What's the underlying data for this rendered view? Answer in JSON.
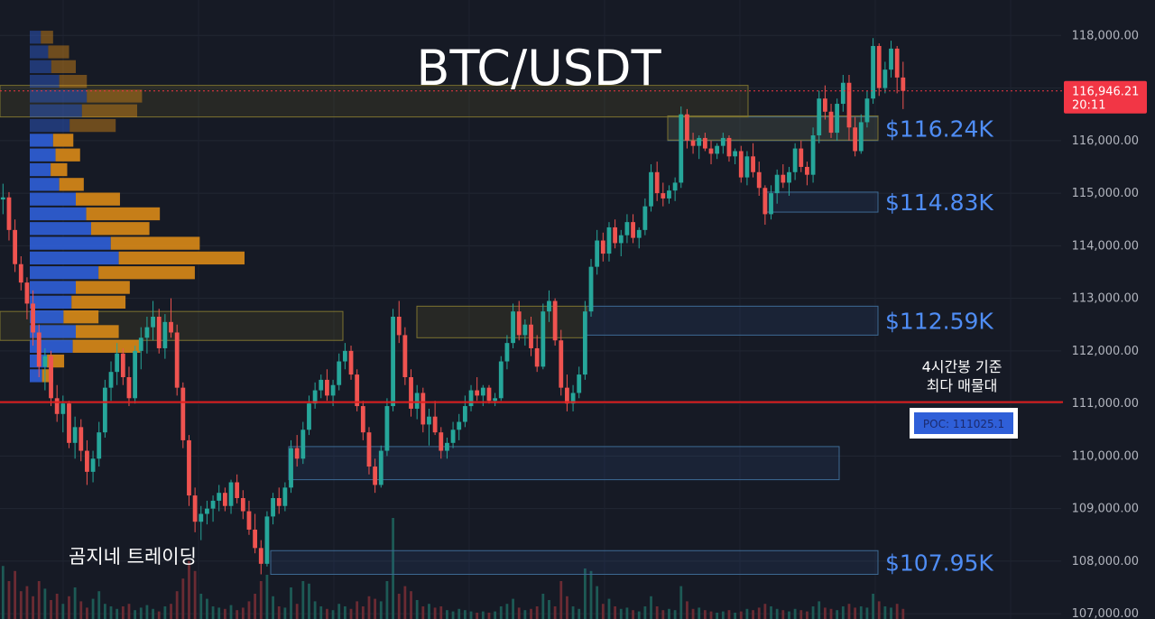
{
  "chart_data": {
    "type": "candlestick",
    "title": "BTC/USDT",
    "brand": "곰지네 트레이딩",
    "colors": {
      "background": "#161a25",
      "up": "#26a69a",
      "down": "#ef5350",
      "volume_buy": "#2f5fd8",
      "volume_sell": "#d98a17",
      "zone_label": "#4f8df5",
      "poc_line": "#e01e1e",
      "price_tag": "#f23645"
    },
    "y_axis": {
      "ylim": [
        106900,
        118400
      ],
      "tick_values": [
        107000,
        108000,
        109000,
        110000,
        111000,
        112000,
        113000,
        114000,
        115000,
        116000,
        117000,
        118000
      ],
      "tick_labels": [
        "107,000.00",
        "108,000.00",
        "109,000.00",
        "110,000.00",
        "111,000.00",
        "112,000.00",
        "113,000.00",
        "114,000.00",
        "115,000.00",
        "116,000.00",
        "117,000.00",
        "118,000.00"
      ]
    },
    "current_price": {
      "value": 116946.21,
      "label": "116,946.21",
      "countdown": "20:11"
    },
    "poc": {
      "value": 111025.1,
      "label": "POC: 111025.1",
      "note_line1": "4시간봉 기준",
      "note_line2": "최다 매물대"
    },
    "zones": [
      {
        "label": "$116.24K",
        "low": 116000,
        "high": 116450
      },
      {
        "label": "$114.83K",
        "low": 114640,
        "high": 115020
      },
      {
        "label": "$112.59K",
        "low": 112300,
        "high": 112850
      },
      {
        "label": "",
        "low": 109550,
        "high": 110180
      },
      {
        "label": "$107.95K",
        "low": 107750,
        "high": 108200
      }
    ],
    "supply_boxes": [
      {
        "low": 116450,
        "high": 117050
      },
      {
        "low": 112200,
        "high": 112750
      },
      {
        "low": 112250,
        "high": 112850
      },
      {
        "low": 116010,
        "high": 116470
      }
    ],
    "volume_profile": {
      "bucket_size": 280,
      "start_price": 117950,
      "buckets": [
        {
          "buy": 18,
          "sell": 20
        },
        {
          "buy": 30,
          "sell": 34
        },
        {
          "buy": 35,
          "sell": 40
        },
        {
          "buy": 48,
          "sell": 45
        },
        {
          "buy": 93,
          "sell": 90
        },
        {
          "buy": 85,
          "sell": 90
        },
        {
          "buy": 65,
          "sell": 75
        },
        {
          "buy": 38,
          "sell": 33
        },
        {
          "buy": 42,
          "sell": 40
        },
        {
          "buy": 34,
          "sell": 27
        },
        {
          "buy": 48,
          "sell": 40
        },
        {
          "buy": 75,
          "sell": 72
        },
        {
          "buy": 92,
          "sell": 120
        },
        {
          "buy": 100,
          "sell": 95
        },
        {
          "buy": 132,
          "sell": 145
        },
        {
          "buy": 145,
          "sell": 205
        },
        {
          "buy": 112,
          "sell": 157
        },
        {
          "buy": 75,
          "sell": 88
        },
        {
          "buy": 68,
          "sell": 88
        },
        {
          "buy": 55,
          "sell": 57
        },
        {
          "buy": 75,
          "sell": 70
        },
        {
          "buy": 70,
          "sell": 110
        },
        {
          "buy": 28,
          "sell": 28
        },
        {
          "buy": 20,
          "sell": 18
        }
      ]
    },
    "candles": [
      [
        114880,
        115180,
        114600,
        114920
      ],
      [
        114920,
        115020,
        114100,
        114300
      ],
      [
        114300,
        114500,
        113500,
        113650
      ],
      [
        113650,
        113800,
        113150,
        113300
      ],
      [
        113300,
        113400,
        112600,
        112900
      ],
      [
        112900,
        113150,
        112100,
        112350
      ],
      [
        112350,
        112500,
        111500,
        111700
      ],
      [
        111700,
        112050,
        111250,
        111900
      ],
      [
        111900,
        112000,
        110950,
        111100
      ],
      [
        111100,
        111350,
        110650,
        110800
      ],
      [
        110800,
        111150,
        110450,
        111000
      ],
      [
        111000,
        111050,
        110150,
        110250
      ],
      [
        110250,
        110750,
        109950,
        110550
      ],
      [
        110550,
        110700,
        109900,
        110100
      ],
      [
        110100,
        110300,
        109450,
        109700
      ],
      [
        109700,
        110100,
        109500,
        109950
      ],
      [
        109950,
        110650,
        109800,
        110450
      ],
      [
        110450,
        111450,
        110350,
        111300
      ],
      [
        111300,
        111800,
        111050,
        111600
      ],
      [
        111600,
        112150,
        111350,
        111950
      ],
      [
        111950,
        112050,
        111350,
        111500
      ],
      [
        111500,
        111700,
        110950,
        111100
      ],
      [
        111100,
        112100,
        111000,
        112000
      ],
      [
        112000,
        112450,
        111650,
        112250
      ],
      [
        112250,
        112650,
        111950,
        112450
      ],
      [
        112450,
        112950,
        112200,
        112650
      ],
      [
        112650,
        112800,
        111950,
        112050
      ],
      [
        112050,
        112700,
        111850,
        112550
      ],
      [
        112550,
        113000,
        112250,
        112350
      ],
      [
        112350,
        112500,
        111150,
        111300
      ],
      [
        111300,
        111400,
        110150,
        110300
      ],
      [
        110300,
        110400,
        109050,
        109250
      ],
      [
        109250,
        109400,
        108550,
        108750
      ],
      [
        108750,
        109050,
        108400,
        108900
      ],
      [
        108900,
        109150,
        108700,
        109000
      ],
      [
        109000,
        109250,
        108750,
        109150
      ],
      [
        109150,
        109450,
        108950,
        109300
      ],
      [
        109300,
        109400,
        108950,
        109050
      ],
      [
        109050,
        109550,
        108900,
        109500
      ],
      [
        109500,
        109650,
        109100,
        109200
      ],
      [
        109200,
        109350,
        108800,
        108950
      ],
      [
        108950,
        109150,
        108500,
        108600
      ],
      [
        108600,
        108900,
        108150,
        108250
      ],
      [
        108250,
        108400,
        107750,
        107950
      ],
      [
        107950,
        108950,
        107900,
        108850
      ],
      [
        108850,
        109300,
        108700,
        109200
      ],
      [
        109200,
        109400,
        108900,
        109050
      ],
      [
        109050,
        109500,
        108950,
        109400
      ],
      [
        109400,
        110300,
        109300,
        110150
      ],
      [
        110150,
        110400,
        109800,
        109950
      ],
      [
        109950,
        110650,
        109850,
        110500
      ],
      [
        110500,
        111150,
        110400,
        111000
      ],
      [
        111000,
        111400,
        110900,
        111250
      ],
      [
        111250,
        111550,
        111100,
        111450
      ],
      [
        111450,
        111650,
        111050,
        111150
      ],
      [
        111150,
        111450,
        110950,
        111350
      ],
      [
        111350,
        111950,
        111250,
        111800
      ],
      [
        111800,
        112150,
        111650,
        112000
      ],
      [
        112000,
        112100,
        111450,
        111550
      ],
      [
        111550,
        111650,
        110850,
        110950
      ],
      [
        110950,
        111050,
        110300,
        110450
      ],
      [
        110450,
        110550,
        109650,
        109800
      ],
      [
        109800,
        109950,
        109300,
        109450
      ],
      [
        109450,
        110200,
        109400,
        110100
      ],
      [
        110100,
        111100,
        110000,
        110950
      ],
      [
        110950,
        112800,
        110850,
        112650
      ],
      [
        112650,
        112950,
        112150,
        112300
      ],
      [
        112300,
        112450,
        111350,
        111500
      ],
      [
        111500,
        111650,
        110750,
        110900
      ],
      [
        110900,
        111350,
        110700,
        111200
      ],
      [
        111200,
        111300,
        110450,
        110600
      ],
      [
        110600,
        110900,
        110200,
        110750
      ],
      [
        110750,
        111050,
        110400,
        110450
      ],
      [
        110450,
        110550,
        109950,
        110100
      ],
      [
        110100,
        110350,
        109950,
        110250
      ],
      [
        110250,
        110650,
        110150,
        110500
      ],
      [
        110500,
        110800,
        110300,
        110650
      ],
      [
        110650,
        111150,
        110550,
        110950
      ],
      [
        110950,
        111350,
        110850,
        111250
      ],
      [
        111250,
        111500,
        111050,
        111150
      ],
      [
        111150,
        111350,
        110950,
        111300
      ],
      [
        111300,
        111350,
        111000,
        111050
      ],
      [
        111050,
        111200,
        110950,
        111100
      ],
      [
        111100,
        111900,
        111050,
        111800
      ],
      [
        111800,
        112300,
        111650,
        112150
      ],
      [
        112150,
        112900,
        112050,
        112750
      ],
      [
        112750,
        112950,
        112200,
        112300
      ],
      [
        112300,
        112600,
        112100,
        112500
      ],
      [
        112500,
        112650,
        111900,
        112050
      ],
      [
        112050,
        112300,
        111600,
        111700
      ],
      [
        111700,
        112900,
        111650,
        112750
      ],
      [
        112750,
        113150,
        112550,
        112950
      ],
      [
        112950,
        113000,
        112100,
        112200
      ],
      [
        112200,
        112400,
        111150,
        111300
      ],
      [
        111300,
        111550,
        110850,
        111000
      ],
      [
        111000,
        111350,
        110850,
        111200
      ],
      [
        111200,
        111700,
        111100,
        111550
      ],
      [
        111550,
        112950,
        111450,
        112750
      ],
      [
        112750,
        113750,
        112650,
        113600
      ],
      [
        113600,
        114300,
        113450,
        114100
      ],
      [
        114100,
        114250,
        113700,
        113850
      ],
      [
        113850,
        114450,
        113700,
        114350
      ],
      [
        114350,
        114500,
        113950,
        114050
      ],
      [
        114050,
        114300,
        113800,
        114200
      ],
      [
        114200,
        114600,
        114050,
        114450
      ],
      [
        114450,
        114600,
        114050,
        114150
      ],
      [
        114150,
        114350,
        113950,
        114300
      ],
      [
        114300,
        114900,
        114200,
        114750
      ],
      [
        114750,
        115550,
        114650,
        115400
      ],
      [
        115400,
        115600,
        114850,
        115000
      ],
      [
        115000,
        115200,
        114750,
        114900
      ],
      [
        114900,
        115150,
        114800,
        115050
      ],
      [
        115050,
        115300,
        114850,
        115200
      ],
      [
        115200,
        116650,
        115100,
        116500
      ],
      [
        116500,
        116600,
        115850,
        116000
      ],
      [
        116000,
        116150,
        115750,
        115900
      ],
      [
        115900,
        116100,
        115650,
        116050
      ],
      [
        116050,
        116150,
        115800,
        115850
      ],
      [
        115850,
        116000,
        115550,
        115750
      ],
      [
        115750,
        115950,
        115650,
        115900
      ],
      [
        115900,
        116150,
        115750,
        116050
      ],
      [
        116050,
        116100,
        115600,
        115700
      ],
      [
        115700,
        115850,
        115550,
        115800
      ],
      [
        115800,
        115900,
        115200,
        115300
      ],
      [
        115300,
        115800,
        115150,
        115700
      ],
      [
        115700,
        115950,
        115300,
        115400
      ],
      [
        115400,
        115600,
        114950,
        115100
      ],
      [
        115100,
        115150,
        114400,
        114600
      ],
      [
        114600,
        115150,
        114500,
        115000
      ],
      [
        115000,
        115450,
        114800,
        115350
      ],
      [
        115350,
        115550,
        115100,
        115200
      ],
      [
        115200,
        115500,
        114950,
        115400
      ],
      [
        115400,
        115950,
        115250,
        115850
      ],
      [
        115850,
        116000,
        115400,
        115500
      ],
      [
        115500,
        115600,
        115150,
        115350
      ],
      [
        115350,
        116250,
        115200,
        116100
      ],
      [
        116100,
        116950,
        115950,
        116800
      ],
      [
        116800,
        117050,
        116400,
        116550
      ],
      [
        116550,
        116700,
        116050,
        116150
      ],
      [
        116150,
        116800,
        116000,
        116700
      ],
      [
        116700,
        117250,
        116550,
        117100
      ],
      [
        117100,
        117250,
        116000,
        116250
      ],
      [
        116250,
        116450,
        115700,
        115800
      ],
      [
        115800,
        116500,
        115750,
        116350
      ],
      [
        116350,
        116950,
        116250,
        116800
      ],
      [
        116800,
        117950,
        116700,
        117800
      ],
      [
        117800,
        117850,
        116850,
        117000
      ],
      [
        117000,
        117500,
        116900,
        117350
      ],
      [
        117350,
        117900,
        117200,
        117750
      ],
      [
        117750,
        117800,
        116900,
        117200
      ],
      [
        117200,
        117500,
        116600,
        116946
      ]
    ],
    "volume": [
      0.42,
      0.3,
      0.38,
      0.22,
      0.26,
      0.18,
      0.3,
      0.24,
      0.15,
      0.2,
      0.12,
      0.18,
      0.25,
      0.14,
      0.09,
      0.16,
      0.22,
      0.12,
      0.1,
      0.08,
      0.1,
      0.12,
      0.07,
      0.09,
      0.11,
      0.08,
      0.06,
      0.1,
      0.12,
      0.22,
      0.32,
      0.46,
      0.38,
      0.2,
      0.16,
      0.1,
      0.09,
      0.08,
      0.11,
      0.07,
      0.09,
      0.14,
      0.2,
      0.3,
      0.35,
      0.18,
      0.1,
      0.09,
      0.25,
      0.12,
      0.3,
      0.28,
      0.14,
      0.1,
      0.08,
      0.07,
      0.12,
      0.1,
      0.08,
      0.14,
      0.1,
      0.18,
      0.16,
      0.14,
      0.3,
      0.8,
      0.2,
      0.26,
      0.22,
      0.15,
      0.1,
      0.12,
      0.09,
      0.1,
      0.07,
      0.06,
      0.08,
      0.07,
      0.06,
      0.05,
      0.06,
      0.05,
      0.06,
      0.1,
      0.12,
      0.16,
      0.09,
      0.07,
      0.08,
      0.1,
      0.2,
      0.15,
      0.1,
      0.3,
      0.18,
      0.1,
      0.08,
      0.4,
      0.38,
      0.26,
      0.12,
      0.16,
      0.1,
      0.08,
      0.09,
      0.07,
      0.06,
      0.1,
      0.18,
      0.1,
      0.07,
      0.08,
      0.07,
      0.26,
      0.14,
      0.08,
      0.09,
      0.07,
      0.06,
      0.05,
      0.06,
      0.07,
      0.05,
      0.06,
      0.08,
      0.07,
      0.09,
      0.12,
      0.1,
      0.08,
      0.07,
      0.06,
      0.08,
      0.07,
      0.06,
      0.1,
      0.14,
      0.09,
      0.08,
      0.07,
      0.1,
      0.12,
      0.09,
      0.1,
      0.09,
      0.2,
      0.14,
      0.1,
      0.09,
      0.12,
      0.08
    ]
  }
}
